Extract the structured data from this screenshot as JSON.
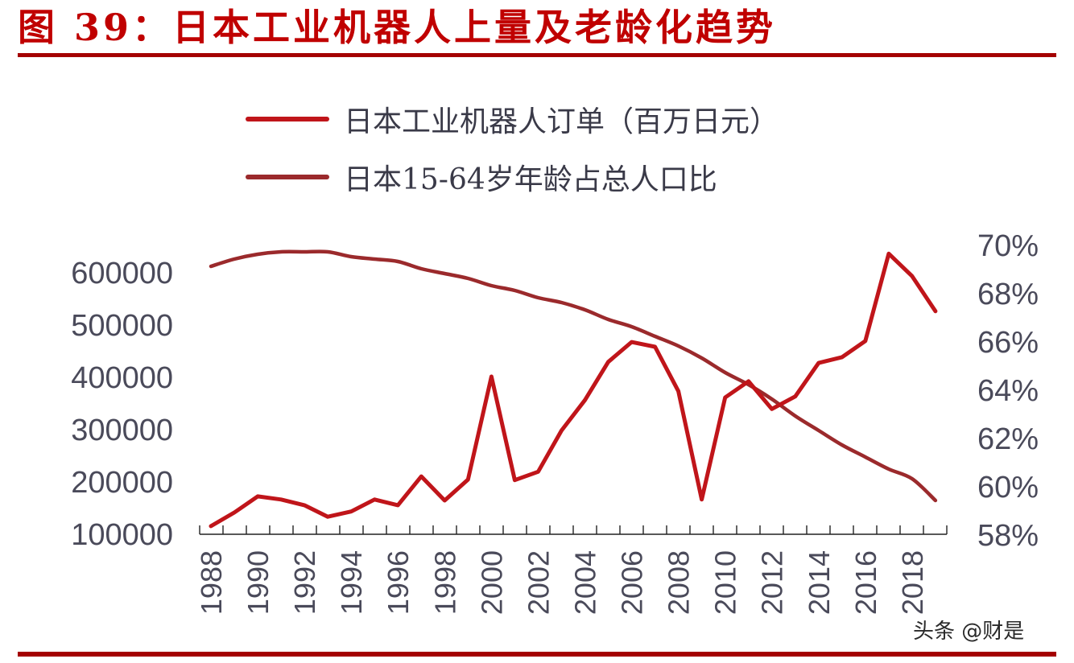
{
  "header": {
    "title": "图 39：日本工业机器人上量及老龄化趋势"
  },
  "legend": [
    {
      "label": "日本工业机器人订单（百万日元）",
      "color": "#c0151a"
    },
    {
      "label": "日本15-64岁年龄占总人口比",
      "color": "#9b2a2c"
    }
  ],
  "watermark": "头条 @财是",
  "colors": {
    "accent": "#a40000",
    "title": "#c00000",
    "orders_line": "#c0151a",
    "population_line": "#9b2a2c",
    "axis_text": "#4a4a5a"
  },
  "chart_data": {
    "type": "line",
    "title": "日本工业机器人上量及老龄化趋势",
    "xlabel": "",
    "ylabel": "日本工业机器人订单（百万日元）",
    "y2label": "日本15-64岁年龄占总人口比",
    "ylim": [
      100000,
      650000
    ],
    "y2lim": [
      58,
      70
    ],
    "yticks": [
      "100000",
      "200000",
      "300000",
      "400000",
      "500000",
      "600000"
    ],
    "y2ticks": [
      "58%",
      "60%",
      "62%",
      "64%",
      "66%",
      "68%",
      "70%"
    ],
    "xtick_labels": [
      "1988",
      "1990",
      "1992",
      "1994",
      "1996",
      "1998",
      "2000",
      "2002",
      "2004",
      "2006",
      "2008",
      "2010",
      "2012",
      "2014",
      "2016",
      "2018"
    ],
    "grid": false,
    "legend_position": "top",
    "x": [
      1988,
      1989,
      1990,
      1991,
      1992,
      1993,
      1994,
      1995,
      1996,
      1997,
      1998,
      1999,
      2000,
      2001,
      2002,
      2003,
      2004,
      2005,
      2006,
      2007,
      2008,
      2009,
      2010,
      2011,
      2012,
      2013,
      2014,
      2015,
      2016,
      2017,
      2018,
      2019
    ],
    "series": [
      {
        "name": "日本工业机器人订单（百万日元）",
        "axis": "left",
        "values": [
          114000,
          140000,
          171000,
          165000,
          154000,
          132000,
          142000,
          165000,
          154000,
          209000,
          163000,
          203000,
          400000,
          202000,
          218000,
          297000,
          355000,
          428000,
          466000,
          457000,
          372000,
          165000,
          360000,
          391000,
          338000,
          362000,
          426000,
          437000,
          468000,
          635000,
          592000,
          525000
        ]
      },
      {
        "name": "日本15-64岁年龄占总人口比",
        "axis": "right",
        "unit": "%",
        "values": [
          69.1,
          69.4,
          69.6,
          69.7,
          69.7,
          69.7,
          69.5,
          69.4,
          69.3,
          69.0,
          68.8,
          68.6,
          68.3,
          68.1,
          67.8,
          67.6,
          67.3,
          66.9,
          66.6,
          66.2,
          65.8,
          65.3,
          64.7,
          64.2,
          63.6,
          62.9,
          62.3,
          61.7,
          61.2,
          60.7,
          60.3,
          59.4
        ]
      }
    ]
  }
}
